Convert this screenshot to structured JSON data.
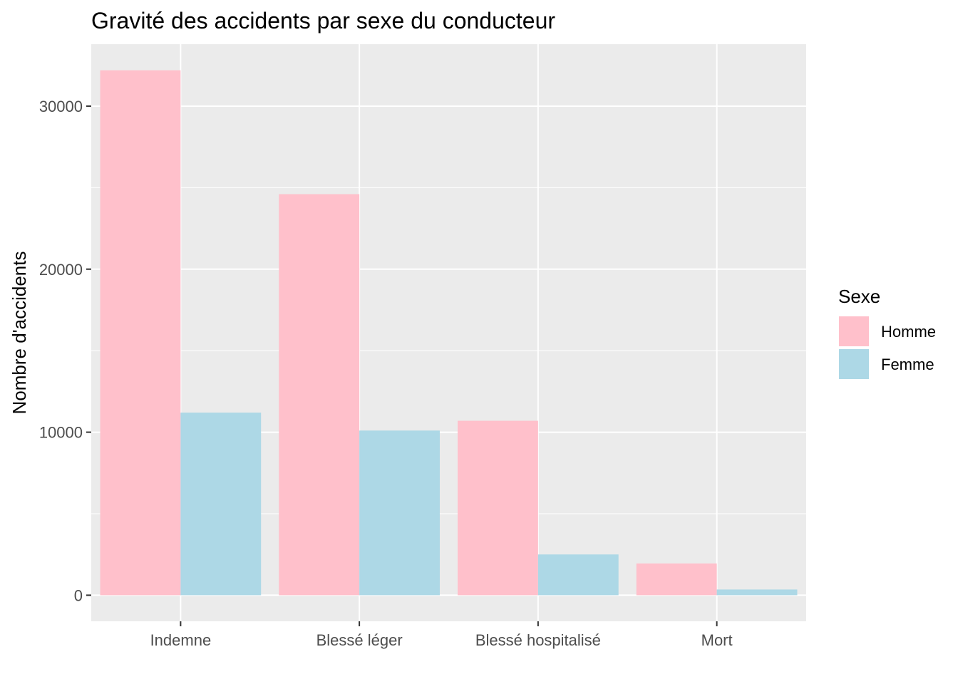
{
  "chart_data": {
    "type": "bar",
    "title": "Gravité des accidents par sexe du conducteur",
    "xlabel": "",
    "ylabel": "Nombre d'accidents",
    "categories": [
      "Indemne",
      "Blessé léger",
      "Blessé hospitalisé",
      "Mort"
    ],
    "series": [
      {
        "name": "Homme",
        "color": "#FFC0CB",
        "values": [
          32200,
          24600,
          10700,
          1950
        ]
      },
      {
        "name": "Femme",
        "color": "#ADD8E6",
        "values": [
          11200,
          10100,
          2500,
          350
        ]
      }
    ],
    "ylim": [
      -1600,
      33800
    ],
    "yticks": [
      0,
      10000,
      20000,
      30000
    ],
    "grid": true,
    "legend": {
      "title": "Sexe",
      "position": "right"
    },
    "colors": {
      "panel": "#EBEBEB",
      "grid": "#FFFFFF"
    }
  }
}
